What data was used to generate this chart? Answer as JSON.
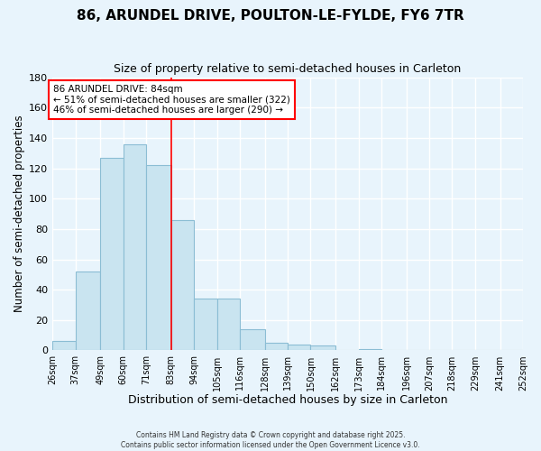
{
  "title": "86, ARUNDEL DRIVE, POULTON-LE-FYLDE, FY6 7TR",
  "subtitle": "Size of property relative to semi-detached houses in Carleton",
  "xlabel": "Distribution of semi-detached houses by size in Carleton",
  "ylabel": "Number of semi-detached properties",
  "bar_color": "#c9e4f0",
  "bar_edge_color": "#8bbdd4",
  "background_color": "#e8f4fc",
  "grid_color": "#ffffff",
  "bin_labels": [
    "26sqm",
    "37sqm",
    "49sqm",
    "60sqm",
    "71sqm",
    "83sqm",
    "94sqm",
    "105sqm",
    "116sqm",
    "128sqm",
    "139sqm",
    "150sqm",
    "162sqm",
    "173sqm",
    "184sqm",
    "196sqm",
    "207sqm",
    "218sqm",
    "229sqm",
    "241sqm",
    "252sqm"
  ],
  "bar_values": [
    6,
    52,
    127,
    136,
    122,
    86,
    34,
    34,
    14,
    5,
    4,
    3,
    0,
    1,
    0,
    0,
    0,
    0,
    0,
    0
  ],
  "bin_edges": [
    26,
    37,
    49,
    60,
    71,
    83,
    94,
    105,
    116,
    128,
    139,
    150,
    162,
    173,
    184,
    196,
    207,
    218,
    229,
    241,
    252
  ],
  "red_line_x": 83,
  "ylim": [
    0,
    180
  ],
  "yticks": [
    0,
    20,
    40,
    60,
    80,
    100,
    120,
    140,
    160,
    180
  ],
  "annotation_title": "86 ARUNDEL DRIVE: 84sqm",
  "annotation_line1": "← 51% of semi-detached houses are smaller (322)",
  "annotation_line2": "46% of semi-detached houses are larger (290) →",
  "footer1": "Contains HM Land Registry data © Crown copyright and database right 2025.",
  "footer2": "Contains public sector information licensed under the Open Government Licence v3.0."
}
